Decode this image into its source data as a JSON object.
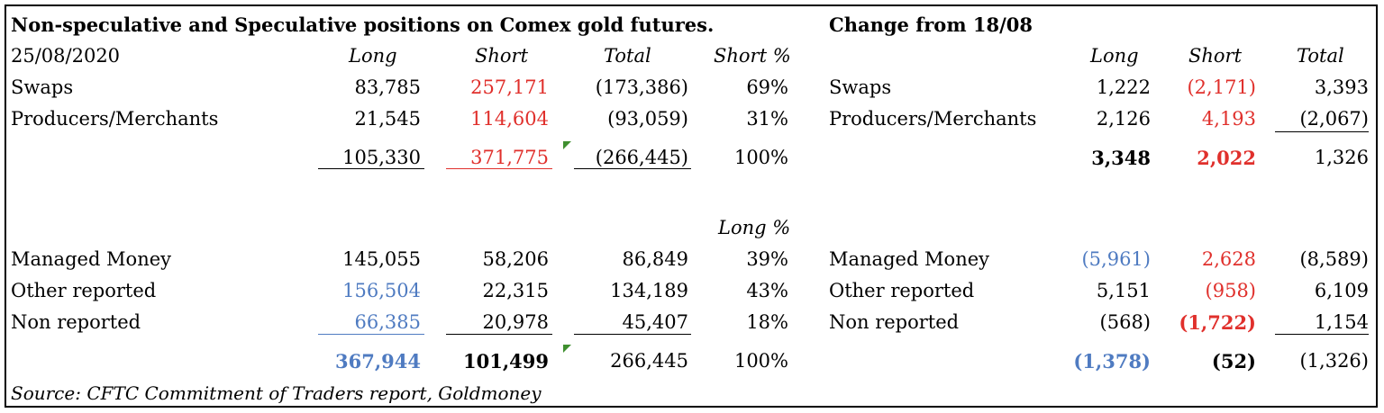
{
  "title": "Non-speculative and Speculative positions on Comex gold futures.",
  "change_title": "Change from 18/08",
  "date": "25/08/2020",
  "headers": {
    "long": "Long",
    "short": "Short",
    "total": "Total",
    "short_pct": "Short %",
    "long_pct": "Long %"
  },
  "colors": {
    "red": "#e0302c",
    "blue": "#4f7bc1",
    "marker": "#3f8f2f"
  },
  "non_spec": {
    "swaps": {
      "label": "Swaps",
      "long": "83,785",
      "short": "257,171",
      "total": "(173,386)",
      "pct": "69%",
      "c_long": "1,222",
      "c_short": "(2,171)",
      "c_total": "3,393"
    },
    "producers": {
      "label": "Producers/Merchants",
      "long": "21,545",
      "short": "114,604",
      "total": "(93,059)",
      "pct": "31%",
      "c_long": "2,126",
      "c_short": "4,193",
      "c_total": "(2,067)"
    },
    "totals": {
      "long": "105,330",
      "short": "371,775",
      "total": "(266,445)",
      "pct": "100%",
      "c_long": "3,348",
      "c_short": "2,022",
      "c_total": "1,326"
    }
  },
  "spec": {
    "managed": {
      "label": "Managed Money",
      "long": "145,055",
      "short": "58,206",
      "total": "86,849",
      "pct": "39%",
      "c_long": "(5,961)",
      "c_short": "2,628",
      "c_total": "(8,589)"
    },
    "other": {
      "label": "Other reported",
      "long": "156,504",
      "short": "22,315",
      "total": "134,189",
      "pct": "43%",
      "c_long": "5,151",
      "c_short": "(958)",
      "c_total": "6,109"
    },
    "nonrep": {
      "label": "Non reported",
      "long": "66,385",
      "short": "20,978",
      "total": "45,407",
      "pct": "18%",
      "c_long": "(568)",
      "c_short": "(1,722)",
      "c_total": "1,154"
    },
    "totals": {
      "long": "367,944",
      "short": "101,499",
      "total": "266,445",
      "pct": "100%",
      "c_long": "(1,378)",
      "c_short": "(52)",
      "c_total": "(1,326)"
    }
  },
  "source": "Source: CFTC Commitment of Traders report, Goldmoney"
}
